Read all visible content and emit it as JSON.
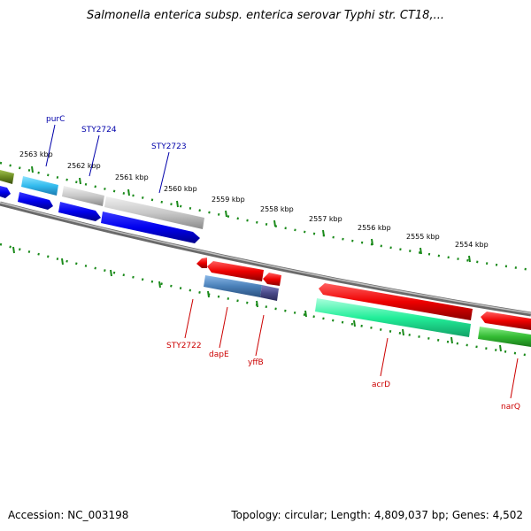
{
  "title": "Salmonella enterica subsp. enterica serovar Typhi str. CT18,...",
  "footer": {
    "accession": "Accession: NC_003198",
    "summary": "Topology: circular; Length: 4,809,037 bp; Genes: 4,502"
  },
  "ticks": [
    "2563 kbp",
    "2562 kbp",
    "2561 kbp",
    "2560 kbp",
    "2559 kbp",
    "2558 kbp",
    "2557 kbp",
    "2556 kbp",
    "2555 kbp",
    "2554 kbp"
  ],
  "genes_top": [
    "purC",
    "STY2724",
    "STY2723"
  ],
  "genes_bottom": [
    "STY2722",
    "dapE",
    "yffB",
    "acrD",
    "narQ"
  ],
  "colors": {
    "blue_label": "#0000aa",
    "red_label": "#cc0000",
    "backbone": "#7a7a7a",
    "tick_green": "#1a8a1a",
    "gene_blue": "#0000ee",
    "gene_cyan": "#33bbee",
    "gene_grey": "#c8c8c8",
    "gene_red": "#ee0000",
    "gene_teal": "#22ee99",
    "gene_green": "#33bb33",
    "gene_olive": "#6a8a20",
    "gene_steel": "#4a80b8",
    "gene_purple": "#4a4a8a"
  }
}
